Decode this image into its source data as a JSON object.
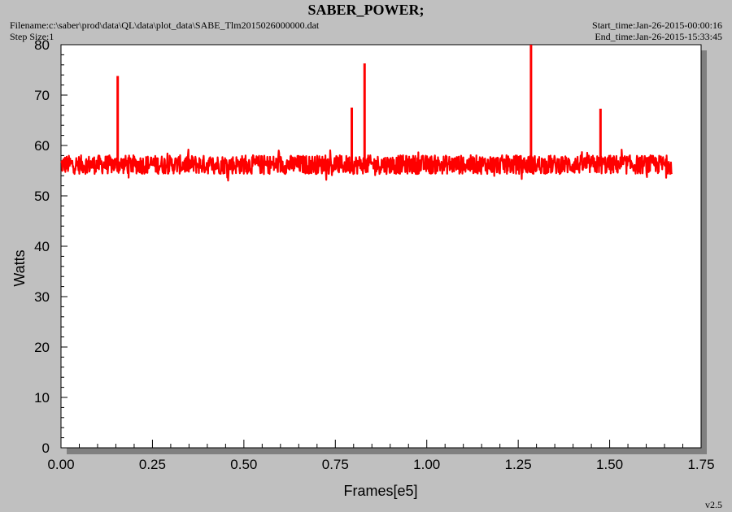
{
  "header": {
    "title": "SABER_POWER;",
    "filename": "Filename:c:\\saber\\prod\\data\\QL\\data\\plot_data\\SABE_Tlm2015026000000.dat",
    "step_size": "Step Size:1",
    "start_time": "Start_time:Jan-26-2015-00:00:16",
    "end_time": "End_time:Jan-26-2015-15:33:45"
  },
  "footer": {
    "version": "v2.5"
  },
  "colors": {
    "series": "#ff0000",
    "background": "#c0c0c0",
    "plot": "#ffffff"
  },
  "chart_data": {
    "type": "line",
    "xlabel": "Frames[e5]",
    "ylabel": "Watts",
    "xlim": [
      0,
      1.75
    ],
    "ylim": [
      0,
      80
    ],
    "x_ticks": [
      "0.00",
      "0.25",
      "0.50",
      "0.75",
      "1.00",
      "1.25",
      "1.50",
      "1.75"
    ],
    "y_ticks": [
      "0",
      "10",
      "20",
      "30",
      "40",
      "50",
      "60",
      "70",
      "80"
    ],
    "grid": false,
    "series": [
      {
        "x_range": [
          0,
          1.67
        ],
        "baseline": 56.2,
        "noise_range": [
          53.5,
          58.5
        ],
        "spikes": [
          {
            "x": 0.155,
            "y": 73.8
          },
          {
            "x": 0.795,
            "y": 67.5
          },
          {
            "x": 0.83,
            "y": 76.3
          },
          {
            "x": 1.285,
            "y": 80.0
          },
          {
            "x": 1.475,
            "y": 67.3
          }
        ]
      }
    ]
  }
}
